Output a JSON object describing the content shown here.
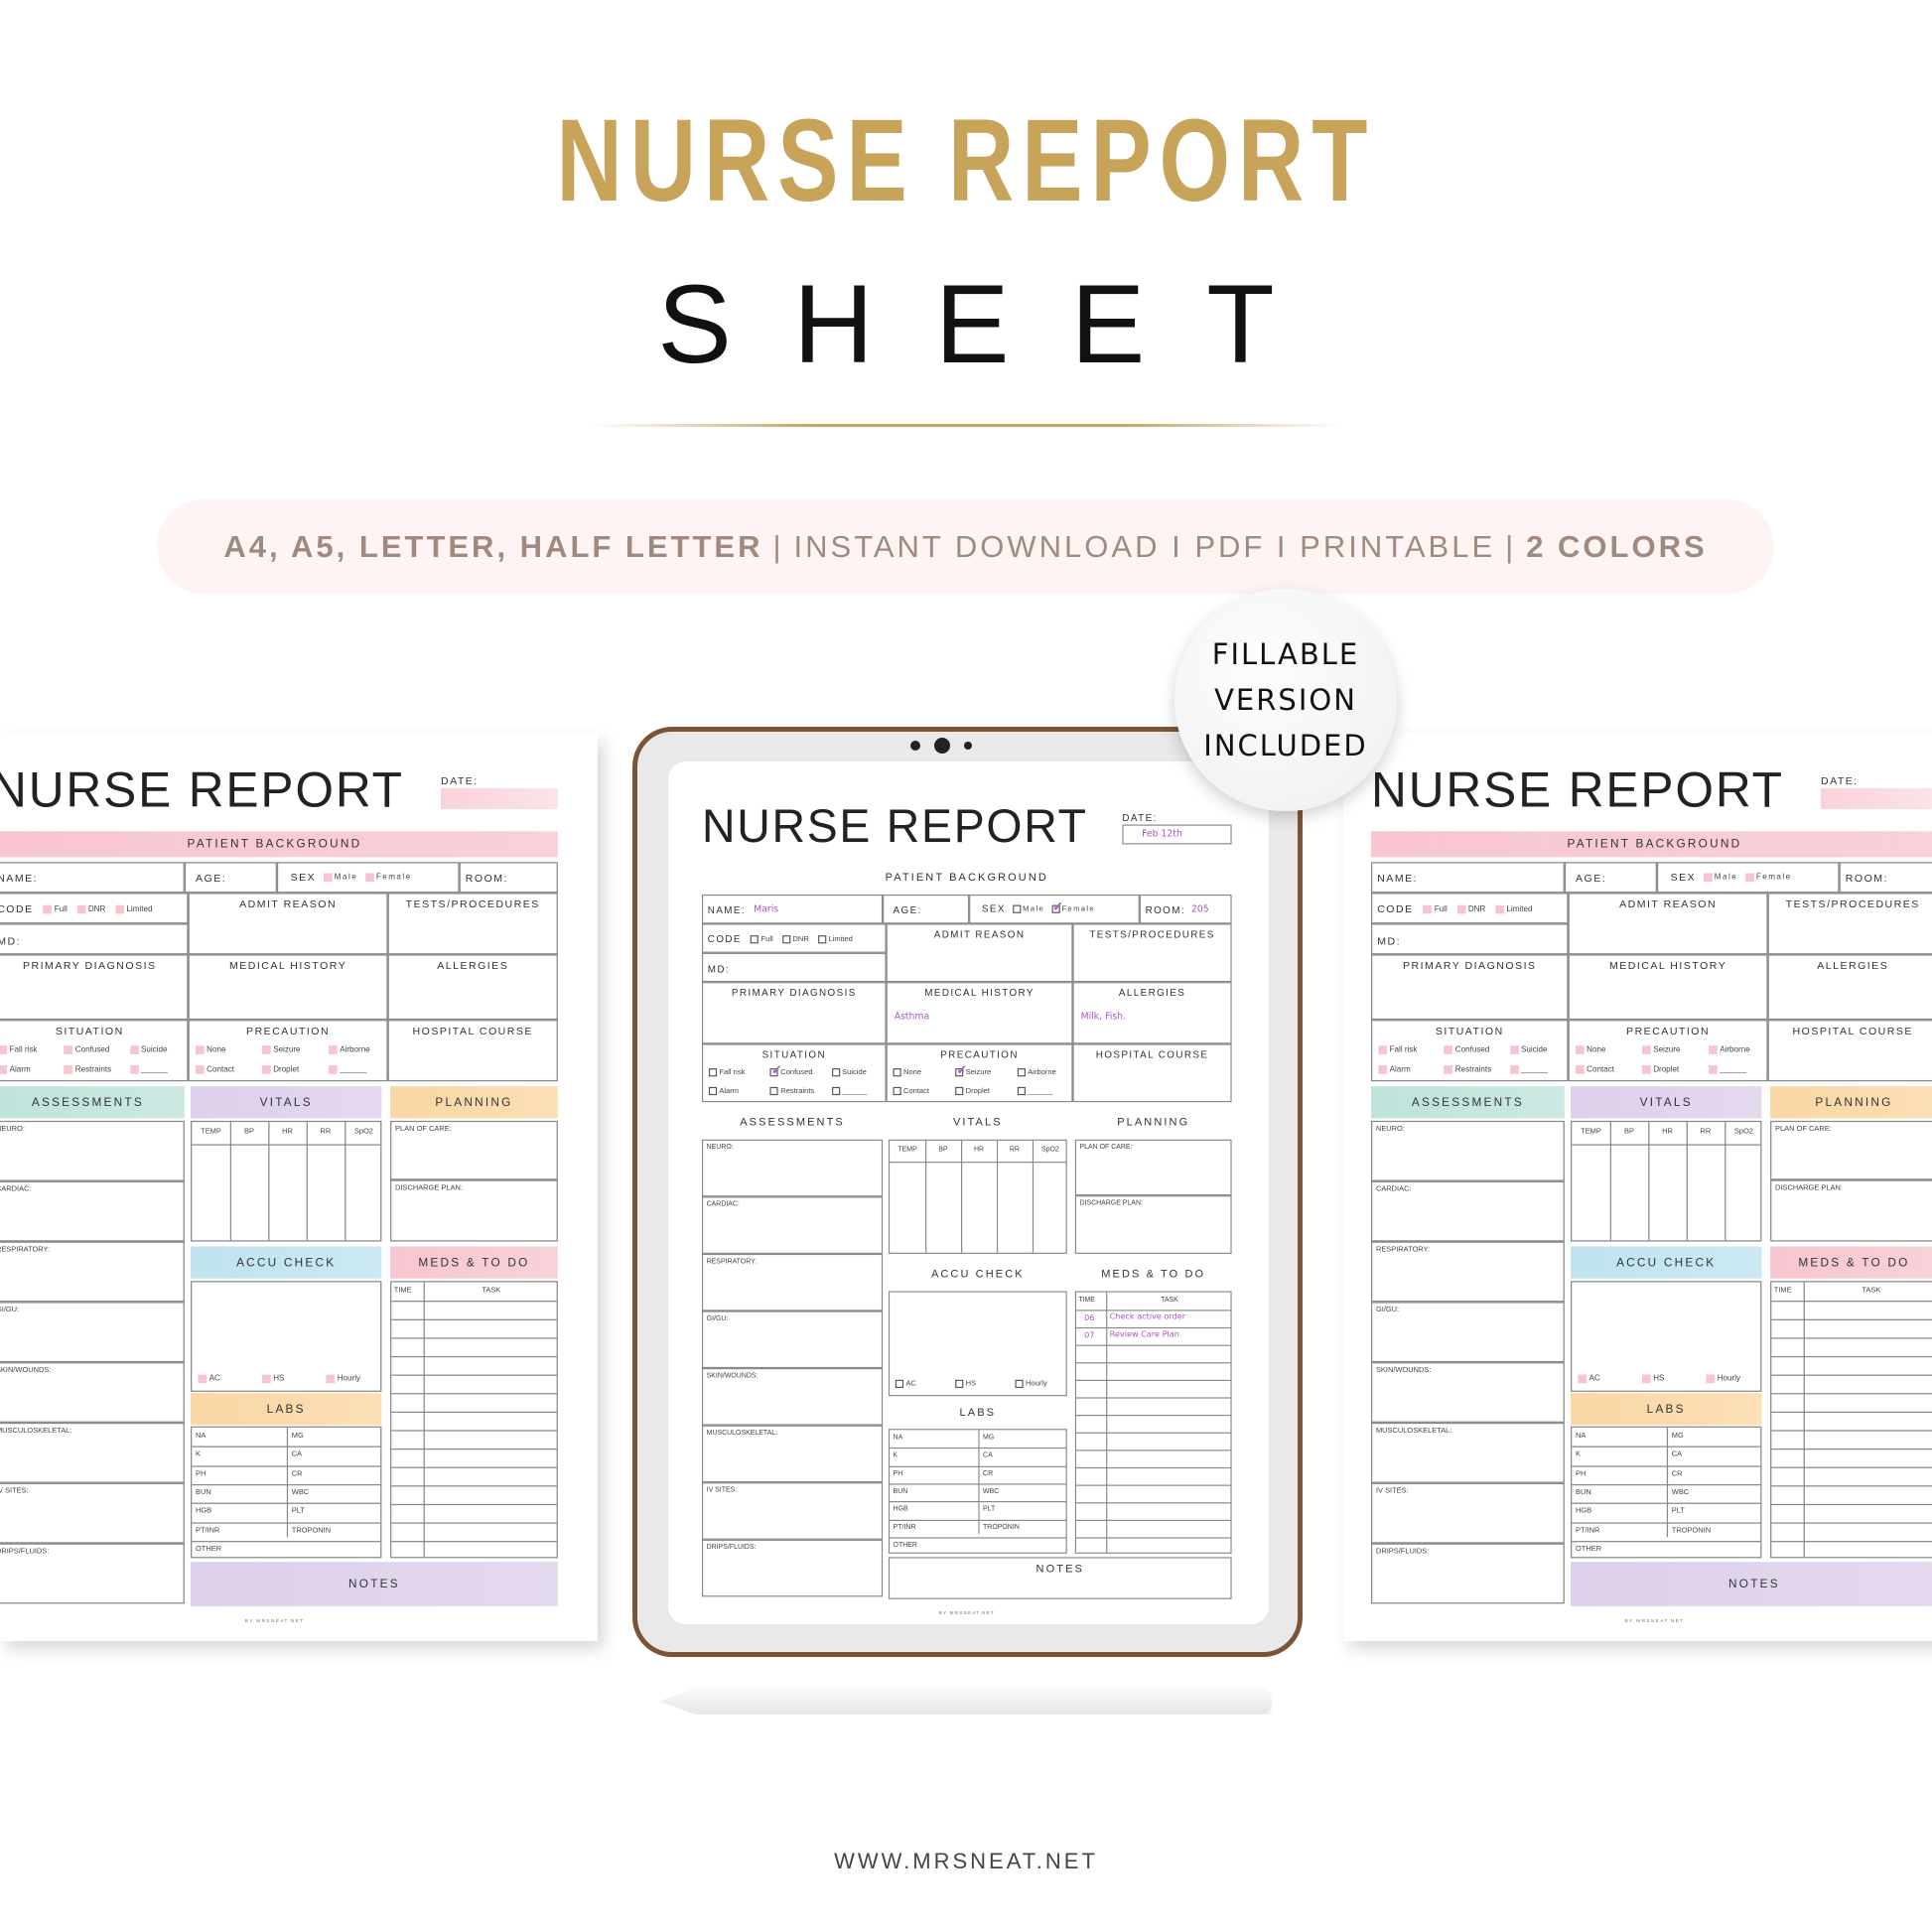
{
  "header": {
    "title": "NURSE REPORT",
    "subtitle": "SHEET"
  },
  "banner": {
    "formats": "A4, A5, LETTER, HALF LETTER",
    "features": "INSTANT DOWNLOAD I PDF I PRINTABLE",
    "colors": "2 COLORS",
    "separator": "|"
  },
  "badge": {
    "lines": [
      "FILLABLE",
      "VERSION",
      "INCLUDED"
    ]
  },
  "footer": {
    "url": "WWW.MRSNEAT.NET"
  },
  "colors": {
    "title_gold": "#c8a35a",
    "banner_text": "#a08a80",
    "banner_bg": "#fdf4f3",
    "tablet_frame": "#7a5436",
    "fill_ink": "#a855c8",
    "patient_background": "#f7c6d0",
    "assessments": "#bfe3db",
    "vitals": "#ddd0ea",
    "planning": "#fad7a4",
    "accu_check": "#bfe3ef",
    "labs": "#fad7a4",
    "meds": "#f7c6d0",
    "notes": "#ddd0ea"
  },
  "form": {
    "title": "NURSE REPORT",
    "date_label": "DATE:",
    "patient_background": "PATIENT BACKGROUND",
    "name_label": "NAME:",
    "age_label": "AGE:",
    "sex_label": "SEX",
    "male": "Male",
    "female": "Female",
    "room_label": "ROOM:",
    "code_label": "CODE",
    "code_options": [
      "Full",
      "DNR",
      "Limited"
    ],
    "md_label": "MD:",
    "admit_reason": "ADMIT REASON",
    "tests_procedures": "TESTS/PROCEDURES",
    "primary_diagnosis": "PRIMARY DIAGNOSIS",
    "medical_history": "MEDICAL HISTORY",
    "allergies": "ALLERGIES",
    "situation": "SITUATION",
    "situation_options": [
      "Fall risk",
      "Confused",
      "Suicide",
      "Alarm",
      "Restraints",
      "______"
    ],
    "precaution": "PRECAUTION",
    "precaution_options": [
      "None",
      "Seizure",
      "Airborne",
      "Contact",
      "Droplet",
      "______"
    ],
    "hospital_course": "HOSPITAL COURSE",
    "assessments": "ASSESSMENTS",
    "assessment_items": [
      "NEURO:",
      "CARDIAC:",
      "RESPIRATORY:",
      "GI/GU:",
      "SKIN/WOUNDS:",
      "MUSCULOSKELETAL:",
      "IV SITES:",
      "DRIPS/FLUIDS:"
    ],
    "vitals": "VITALS",
    "vitals_cols": [
      "TEMP",
      "BP",
      "HR",
      "RR",
      "SpO2"
    ],
    "planning": "PLANNING",
    "plan_of_care": "PLAN OF CARE:",
    "discharge_plan": "DISCHARGE PLAN:",
    "accu_check": "ACCU CHECK",
    "accu_options": [
      "AC",
      "HS",
      "Hourly"
    ],
    "labs": "LABS",
    "labs_rows": [
      [
        "NA",
        "MG"
      ],
      [
        "K",
        "CA"
      ],
      [
        "PH",
        "CR"
      ],
      [
        "BUN",
        "WBC"
      ],
      [
        "HGB",
        "PLT"
      ],
      [
        "PT/INR",
        "TROPONIN"
      ],
      [
        "OTHER"
      ]
    ],
    "meds_todo": "MEDS & TO DO",
    "meds_cols": [
      "TIME",
      "TASK"
    ],
    "notes": "NOTES",
    "footer": "BY MRSNEAT.NET"
  },
  "tablet_entries": {
    "date": "Feb 12th",
    "name": "Maris",
    "room": "205",
    "sex_checked": "Female",
    "medical_history": "Asthma",
    "allergies": "Milk, Fish.",
    "situation_checked": "Confused",
    "precaution_checked": "Seizure",
    "meds": [
      {
        "time": "06",
        "task": "Check active order"
      },
      {
        "time": "07",
        "task": "Review Care Plan"
      }
    ]
  }
}
